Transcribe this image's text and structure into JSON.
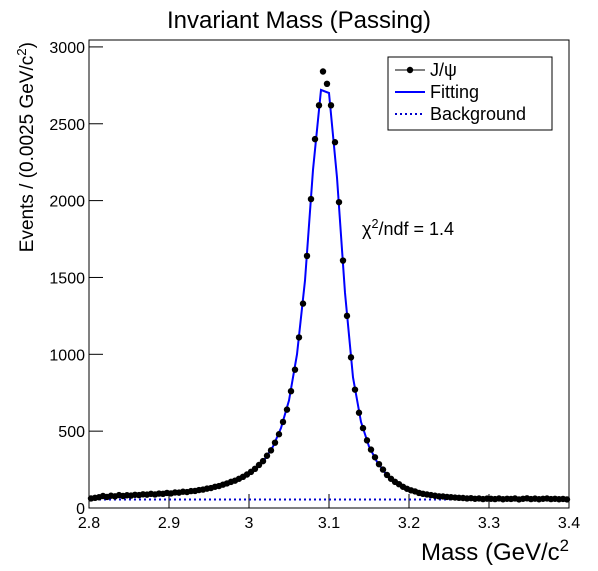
{
  "chart_data": {
    "type": "scatter",
    "title": "Invariant Mass (Passing)",
    "x_label": [
      "Mass (GeV/c",
      "2"
    ],
    "y_label": [
      "Events / (0.0025 GeV/c",
      "2",
      ")"
    ],
    "annotation": [
      "χ",
      "2",
      "/ndf = 1.4"
    ],
    "xlim": [
      2.8,
      3.4
    ],
    "xticks": [
      2.8,
      2.9,
      3,
      3.1,
      3.2,
      3.3,
      3.4
    ],
    "ylim": [
      0,
      3045
    ],
    "yticks": [
      0,
      500,
      1000,
      1500,
      2000,
      2500,
      3000
    ],
    "legend": "top-right",
    "series": [
      {
        "name": "J/ψ",
        "color": "#000000",
        "style": "points",
        "x": [
          2.8025,
          2.8075,
          2.8125,
          2.8175,
          2.8225,
          2.8275,
          2.8325,
          2.8375,
          2.8425,
          2.8475,
          2.8525,
          2.8575,
          2.8625,
          2.8675,
          2.8725,
          2.8775,
          2.8825,
          2.8875,
          2.8925,
          2.8975,
          2.9025,
          2.9075,
          2.9125,
          2.9175,
          2.9225,
          2.9275,
          2.9325,
          2.9375,
          2.9425,
          2.9475,
          2.9525,
          2.9575,
          2.9625,
          2.9675,
          2.9725,
          2.9775,
          2.9825,
          2.9875,
          2.9925,
          2.9975,
          3.0025,
          3.0075,
          3.0125,
          3.0175,
          3.0225,
          3.0275,
          3.0325,
          3.0375,
          3.0425,
          3.0475,
          3.0525,
          3.0575,
          3.0625,
          3.0675,
          3.0725,
          3.0775,
          3.0825,
          3.0875,
          3.0925,
          3.0975,
          3.1025,
          3.1075,
          3.1125,
          3.1175,
          3.1225,
          3.1275,
          3.1325,
          3.1375,
          3.1425,
          3.1475,
          3.1525,
          3.1575,
          3.1625,
          3.1675,
          3.1725,
          3.1775,
          3.1825,
          3.1875,
          3.1925,
          3.1975,
          3.2025,
          3.2075,
          3.2125,
          3.2175,
          3.2225,
          3.2275,
          3.2325,
          3.2375,
          3.2425,
          3.2475,
          3.2525,
          3.2575,
          3.2625,
          3.2675,
          3.2725,
          3.2775,
          3.2825,
          3.2875,
          3.2925,
          3.2975,
          3.3025,
          3.3075,
          3.3125,
          3.3175,
          3.3225,
          3.3275,
          3.3325,
          3.3375,
          3.3425,
          3.3475,
          3.3525,
          3.3575,
          3.3625,
          3.3675,
          3.3725,
          3.3775,
          3.3825,
          3.3875,
          3.3925,
          3.3975
        ],
        "values": [
          62,
          66,
          70,
          78,
          72,
          80,
          76,
          84,
          78,
          83,
          81,
          86,
          84,
          89,
          87,
          92,
          88,
          94,
          92,
          98,
          95,
          101,
          100,
          106,
          104,
          110,
          111,
          117,
          120,
          126,
          130,
          138,
          143,
          152,
          160,
          170,
          178,
          190,
          203,
          218,
          235,
          255,
          280,
          305,
          340,
          375,
          425,
          480,
          560,
          640,
          760,
          900,
          1110,
          1330,
          1640,
          2010,
          2400,
          2620,
          2840,
          2760,
          2620,
          2380,
          1990,
          1610,
          1250,
          980,
          770,
          620,
          520,
          440,
          380,
          330,
          285,
          250,
          215,
          190,
          170,
          155,
          138,
          125,
          115,
          108,
          98,
          92,
          88,
          84,
          80,
          76,
          75,
          72,
          70,
          68,
          66,
          65,
          62,
          64,
          60,
          62,
          58,
          61,
          60,
          58,
          62,
          57,
          60,
          59,
          62,
          56,
          60,
          63,
          58,
          61,
          57,
          60,
          62,
          58,
          60,
          57,
          59,
          56
        ]
      },
      {
        "name": "Fitting",
        "color": "#0000ff",
        "style": "line",
        "x": [
          2.8,
          2.81,
          2.82,
          2.83,
          2.84,
          2.85,
          2.86,
          2.87,
          2.88,
          2.89,
          2.9,
          2.91,
          2.92,
          2.93,
          2.94,
          2.95,
          2.96,
          2.97,
          2.98,
          2.99,
          3,
          3.01,
          3.02,
          3.03,
          3.04,
          3.05,
          3.06,
          3.07,
          3.08,
          3.09,
          3.1,
          3.11,
          3.12,
          3.13,
          3.14,
          3.15,
          3.16,
          3.17,
          3.18,
          3.19,
          3.2,
          3.21,
          3.22,
          3.23,
          3.24,
          3.25,
          3.26,
          3.27,
          3.28,
          3.29,
          3.3,
          3.31,
          3.32,
          3.33,
          3.34,
          3.35,
          3.36,
          3.37,
          3.38,
          3.39,
          3.4
        ],
        "values": [
          60,
          68,
          73,
          77,
          80,
          82,
          85,
          88,
          90,
          93,
          96,
          100,
          104,
          110,
          118,
          128,
          140,
          155,
          172,
          195,
          225,
          265,
          320,
          400,
          520,
          700,
          1000,
          1480,
          2200,
          2720,
          2700,
          2150,
          1400,
          850,
          560,
          400,
          300,
          230,
          180,
          145,
          120,
          103,
          92,
          84,
          78,
          74,
          70,
          67,
          65,
          63,
          62,
          61,
          60,
          59,
          58,
          58,
          57,
          57,
          56,
          56,
          55
        ]
      },
      {
        "name": "Background",
        "color": "#0000cc",
        "style": "dotted",
        "x": [
          2.8,
          3.4
        ],
        "values": [
          55,
          55
        ]
      }
    ]
  }
}
